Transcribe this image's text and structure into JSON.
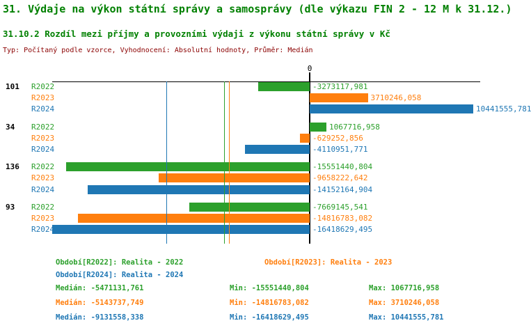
{
  "title": "31. Výdaje na výkon státní správy a samosprávy (dle výkazu FIN 2 - 12 M k 31.12.)",
  "subtitle": "31.10.2 Rozdíl mezi příjmy a provozními výdaji z výkonu státní správy v Kč",
  "meta_line": "Typ: Počítaný podle vzorce, Vyhodnocení: Absolutní hodnoty, Průměr: Medián",
  "colors": {
    "green": "#2CA02C",
    "orange": "#FF7F0E",
    "blue": "#1F77B4",
    "title_green": "#008000",
    "meta_red": "#8B0000",
    "axis_black": "#000000"
  },
  "chart_data": {
    "type": "bar",
    "orientation": "horizontal",
    "unit": "Kč",
    "zero_label": "0",
    "xlim": [
      -16800000,
      13600000
    ],
    "series": [
      {
        "name": "R2022",
        "color_key": "green"
      },
      {
        "name": "R2023",
        "color_key": "orange"
      },
      {
        "name": "R2024",
        "color_key": "blue"
      }
    ],
    "groups": [
      {
        "label": "101",
        "values": [
          -3273117.981,
          3710246.058,
          10441555.781
        ],
        "value_labels": [
          "-3273117,981",
          "3710246,058",
          "10441555,781"
        ]
      },
      {
        "label": "34",
        "values": [
          1067716.958,
          -629252.856,
          -4110951.771
        ],
        "value_labels": [
          "1067716,958",
          "-629252,856",
          "-4110951,771"
        ]
      },
      {
        "label": "136",
        "values": [
          -15551440.804,
          -9658222.642,
          -14152164.904
        ],
        "value_labels": [
          "-15551440,804",
          "-9658222,642",
          "-14152164,904"
        ]
      },
      {
        "label": "93",
        "values": [
          -7669145.541,
          -14816783.082,
          -16418629.495
        ],
        "value_labels": [
          "-7669145,541",
          "-14816783,082",
          "-16418629,495"
        ]
      }
    ],
    "median_lines": [
      {
        "series": "R2022",
        "value": -5471131.761
      },
      {
        "series": "R2023",
        "value": -5143737.749
      },
      {
        "series": "R2024",
        "value": -9131558.338
      }
    ]
  },
  "legend": {
    "items": [
      {
        "text": "Období[R2022]: Realita - 2022",
        "series": "R2022"
      },
      {
        "text": "Období[R2023]: Realita - 2023",
        "series": "R2023"
      },
      {
        "text": "Období[R2024]: Realita - 2024",
        "series": "R2024"
      }
    ]
  },
  "stats": {
    "rows": [
      {
        "series": "R2022",
        "median": "Medián: -5471131,761",
        "min": "Min: -15551440,804",
        "max": "Max: 1067716,958"
      },
      {
        "series": "R2023",
        "median": "Medián: -5143737,749",
        "min": "Min: -14816783,082",
        "max": "Max: 3710246,058"
      },
      {
        "series": "R2024",
        "median": "Medián: -9131558,338",
        "min": "Min: -16418629,495",
        "max": "Max: 10441555,781"
      }
    ]
  }
}
